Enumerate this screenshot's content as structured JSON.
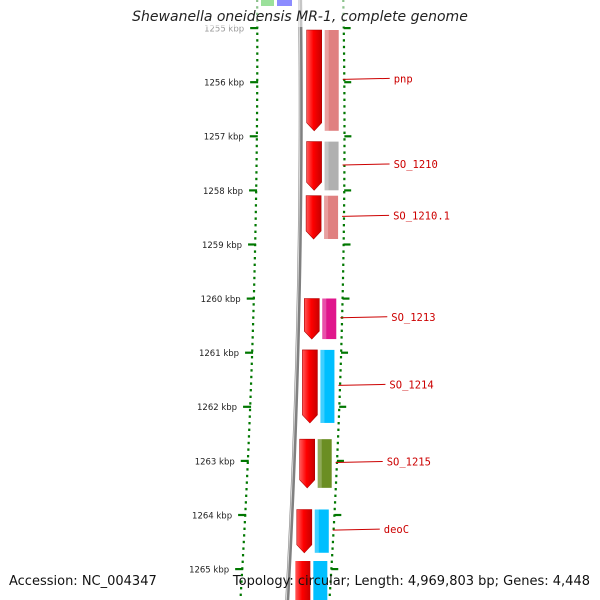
{
  "title": "Shewanella oneidensis MR-1, complete genome",
  "ruler": {
    "unit": "kbp",
    "first_kbp": 1255,
    "last_kbp": 1265
  },
  "genes": [
    {
      "label": "pnp",
      "start_kbp": 1255.0,
      "end_kbp": 1256.9,
      "track_color": "#e08080"
    },
    {
      "label": "SO_1210",
      "start_kbp": 1257.1,
      "end_kbp": 1258.0,
      "track_color": "#b0b0b0"
    },
    {
      "label": "SO_1210.1",
      "start_kbp": 1258.1,
      "end_kbp": 1258.9,
      "track_color": "#e08080"
    },
    {
      "label": "SO_1213",
      "start_kbp": 1260.0,
      "end_kbp": 1260.75,
      "track_color": "#e0168c"
    },
    {
      "label": "SO_1214",
      "start_kbp": 1260.95,
      "end_kbp": 1262.3,
      "track_color": "#00bfff"
    },
    {
      "label": "SO_1215",
      "start_kbp": 1262.6,
      "end_kbp": 1263.5,
      "track_color": "#6b8e23"
    },
    {
      "label": "deoC",
      "start_kbp": 1263.9,
      "end_kbp": 1264.7,
      "track_color": "#00bfff"
    }
  ],
  "colors": {
    "strand_arrow": "#ff0000",
    "label": "#cc0000",
    "ticks": "#007700",
    "backbone": "#808080"
  },
  "footer": {
    "accession": "Accession: NC_004347",
    "stats": "Topology: circular; Length: 4,969,803 bp; Genes: 4,448"
  }
}
